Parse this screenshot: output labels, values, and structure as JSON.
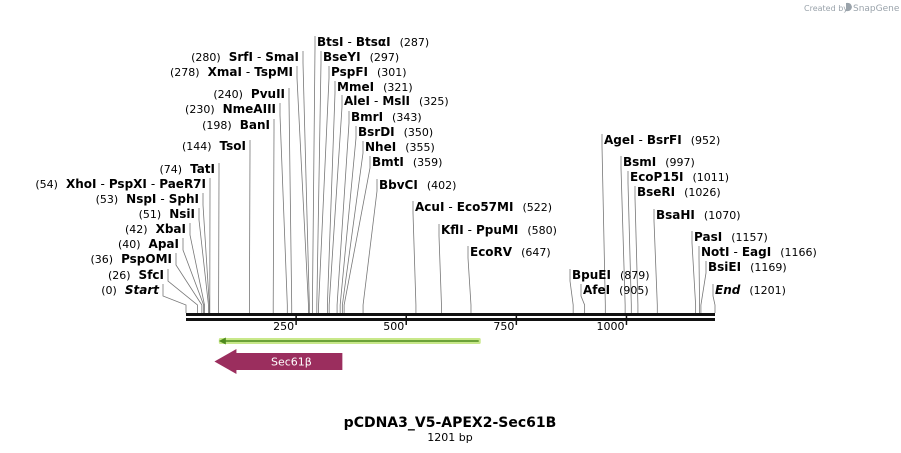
{
  "watermark": {
    "prefix": "Created by",
    "brand": "SnapGene"
  },
  "map": {
    "title": "pCDNA3_V5-APEX2-Sec61B",
    "length_label": "1201 bp",
    "length_bp": 1201,
    "ticks": [
      {
        "bp": 250,
        "label": "250"
      },
      {
        "bp": 500,
        "label": "500"
      },
      {
        "bp": 750,
        "label": "750"
      },
      {
        "bp": 1000,
        "label": "1000"
      }
    ],
    "sites": [
      {
        "names": [
          "Start"
        ],
        "pos": "(0)",
        "bp": 0,
        "italic": true,
        "side": "left"
      },
      {
        "names": [
          "SfcI"
        ],
        "pos": "(26)",
        "bp": 26,
        "side": "left"
      },
      {
        "names": [
          "PspOMI"
        ],
        "pos": "(36)",
        "bp": 36,
        "side": "left"
      },
      {
        "names": [
          "ApaI"
        ],
        "pos": "(40)",
        "bp": 40,
        "side": "left"
      },
      {
        "names": [
          "XbaI"
        ],
        "pos": "(42)",
        "bp": 42,
        "side": "left"
      },
      {
        "names": [
          "NsiI"
        ],
        "pos": "(51)",
        "bp": 51,
        "side": "left"
      },
      {
        "names": [
          "NspI",
          "SphI"
        ],
        "pos": "(53)",
        "bp": 53,
        "side": "left"
      },
      {
        "names": [
          "XhoI",
          "PspXI",
          "PaeR7I"
        ],
        "pos": "(54)",
        "bp": 54,
        "side": "left"
      },
      {
        "names": [
          "TatI"
        ],
        "pos": "(74)",
        "bp": 74,
        "side": "left"
      },
      {
        "names": [
          "TsoI"
        ],
        "pos": "(144)",
        "bp": 144,
        "side": "left"
      },
      {
        "names": [
          "BanI"
        ],
        "pos": "(198)",
        "bp": 198,
        "side": "left"
      },
      {
        "names": [
          "NmeAIII"
        ],
        "pos": "(230)",
        "bp": 230,
        "side": "left"
      },
      {
        "names": [
          "PvuII"
        ],
        "pos": "(240)",
        "bp": 240,
        "side": "left"
      },
      {
        "names": [
          "XmaI",
          "TspMI"
        ],
        "pos": "(278)",
        "bp": 278,
        "side": "left"
      },
      {
        "names": [
          "SrfI",
          "SmaI"
        ],
        "pos": "(280)",
        "bp": 280,
        "side": "left"
      },
      {
        "names": [
          "BtsI",
          "BtsαI"
        ],
        "pos": "(287)",
        "bp": 287,
        "side": "right"
      },
      {
        "names": [
          "BseYI"
        ],
        "pos": "(297)",
        "bp": 297,
        "side": "right"
      },
      {
        "names": [
          "PspFI"
        ],
        "pos": "(301)",
        "bp": 301,
        "side": "right"
      },
      {
        "names": [
          "MmeI"
        ],
        "pos": "(321)",
        "bp": 321,
        "side": "right"
      },
      {
        "names": [
          "AleI",
          "MslI"
        ],
        "pos": "(325)",
        "bp": 325,
        "side": "right"
      },
      {
        "names": [
          "BmrI"
        ],
        "pos": "(343)",
        "bp": 343,
        "side": "right"
      },
      {
        "names": [
          "BsrDI"
        ],
        "pos": "(350)",
        "bp": 350,
        "side": "right"
      },
      {
        "names": [
          "NheI"
        ],
        "pos": "(355)",
        "bp": 355,
        "side": "right"
      },
      {
        "names": [
          "BmtI"
        ],
        "pos": "(359)",
        "bp": 359,
        "side": "right"
      },
      {
        "names": [
          "BbvCI"
        ],
        "pos": "(402)",
        "bp": 402,
        "side": "right"
      },
      {
        "names": [
          "AcuI",
          "Eco57MI"
        ],
        "pos": "(522)",
        "bp": 522,
        "side": "right"
      },
      {
        "names": [
          "KflI",
          "PpuMI"
        ],
        "pos": "(580)",
        "bp": 580,
        "side": "right"
      },
      {
        "names": [
          "EcoRV"
        ],
        "pos": "(647)",
        "bp": 647,
        "side": "right"
      },
      {
        "names": [
          "BpuEI"
        ],
        "pos": "(879)",
        "bp": 879,
        "side": "right"
      },
      {
        "names": [
          "AfeI"
        ],
        "pos": "(905)",
        "bp": 905,
        "side": "right"
      },
      {
        "names": [
          "AgeI",
          "BsrFI"
        ],
        "pos": "(952)",
        "bp": 952,
        "side": "right"
      },
      {
        "names": [
          "BsmI"
        ],
        "pos": "(997)",
        "bp": 997,
        "side": "right"
      },
      {
        "names": [
          "EcoP15I"
        ],
        "pos": "(1011)",
        "bp": 1011,
        "side": "right"
      },
      {
        "names": [
          "BseRI"
        ],
        "pos": "(1026)",
        "bp": 1026,
        "side": "right"
      },
      {
        "names": [
          "BsaHI"
        ],
        "pos": "(1070)",
        "bp": 1070,
        "side": "right"
      },
      {
        "names": [
          "PasI"
        ],
        "pos": "(1157)",
        "bp": 1157,
        "side": "right"
      },
      {
        "names": [
          "NotI",
          "EagI"
        ],
        "pos": "(1166)",
        "bp": 1166,
        "side": "right"
      },
      {
        "names": [
          "BsiEI"
        ],
        "pos": "(1169)",
        "bp": 1169,
        "side": "right"
      },
      {
        "names": [
          "End"
        ],
        "pos": "(1201)",
        "bp": 1201,
        "italic": true,
        "side": "right"
      }
    ],
    "features": [
      {
        "kind": "primer",
        "name": "",
        "start_bp": 70,
        "end_bp": 660,
        "direction": "reverse",
        "color": "#c8e88a",
        "line_color": "#4e8a1e"
      },
      {
        "kind": "cds",
        "name": "Sec61β",
        "start_bp": 60,
        "end_bp": 355,
        "direction": "reverse",
        "color": "#9b2e5e"
      }
    ],
    "colors": {
      "backbone": "#111111",
      "leader": "#777777"
    }
  }
}
